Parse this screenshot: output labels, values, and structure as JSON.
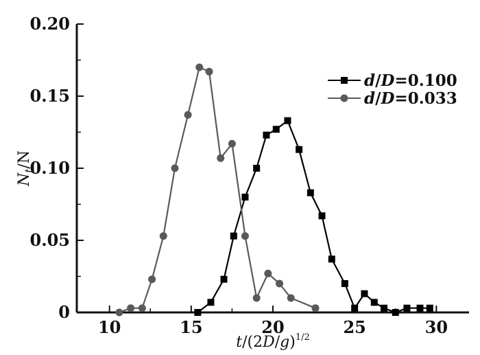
{
  "chart_data": {
    "type": "line",
    "xlabel": {
      "italic_t": "t",
      "base": "/(2",
      "italic_D": "D",
      "slash": "/",
      "italic_g": "g",
      "close": ")",
      "sup": "1/2"
    },
    "ylabel": {
      "italic_N": "N",
      "sub": "t",
      "rest": "/N"
    },
    "xlim": [
      8,
      32
    ],
    "ylim": [
      0,
      0.2
    ],
    "xticks": [
      10,
      15,
      20,
      25,
      30
    ],
    "yticks": [
      0,
      0.05,
      0.1,
      0.15,
      0.2
    ],
    "xtick_labels": [
      "10",
      "15",
      "20",
      "25",
      "30"
    ],
    "ytick_labels": [
      "0",
      "0.05",
      "0.10",
      "0.15",
      "0.20"
    ],
    "legend_position": "top-right",
    "series": [
      {
        "name": "d/D=0.100",
        "legend": {
          "italic_a": "d",
          "slash": "/",
          "italic_b": "D",
          "value": "=0.100"
        },
        "color": "#000000",
        "marker": "square",
        "x": [
          15.4,
          16.2,
          17.0,
          17.6,
          18.3,
          19.0,
          19.6,
          20.2,
          20.9,
          21.6,
          22.3,
          23.0,
          23.6,
          24.4,
          25.0,
          25.6,
          26.2,
          26.8,
          27.5,
          28.2,
          29.0,
          29.6
        ],
        "y": [
          0.0,
          0.007,
          0.023,
          0.053,
          0.08,
          0.1,
          0.123,
          0.127,
          0.133,
          0.113,
          0.083,
          0.067,
          0.037,
          0.02,
          0.003,
          0.013,
          0.007,
          0.003,
          0.0,
          0.003,
          0.003,
          0.003
        ]
      },
      {
        "name": "d/D=0.033",
        "legend": {
          "italic_a": "d",
          "slash": "/",
          "italic_b": "D",
          "value": "=0.033"
        },
        "color": "#595959",
        "marker": "circle",
        "x": [
          10.6,
          11.3,
          12.0,
          12.6,
          13.3,
          14.0,
          14.8,
          15.5,
          16.1,
          16.8,
          17.5,
          18.3,
          19.0,
          19.7,
          20.4,
          21.1,
          22.6
        ],
        "y": [
          0.0,
          0.003,
          0.003,
          0.023,
          0.053,
          0.1,
          0.137,
          0.17,
          0.167,
          0.107,
          0.117,
          0.053,
          0.01,
          0.027,
          0.02,
          0.01,
          0.003
        ]
      }
    ]
  }
}
